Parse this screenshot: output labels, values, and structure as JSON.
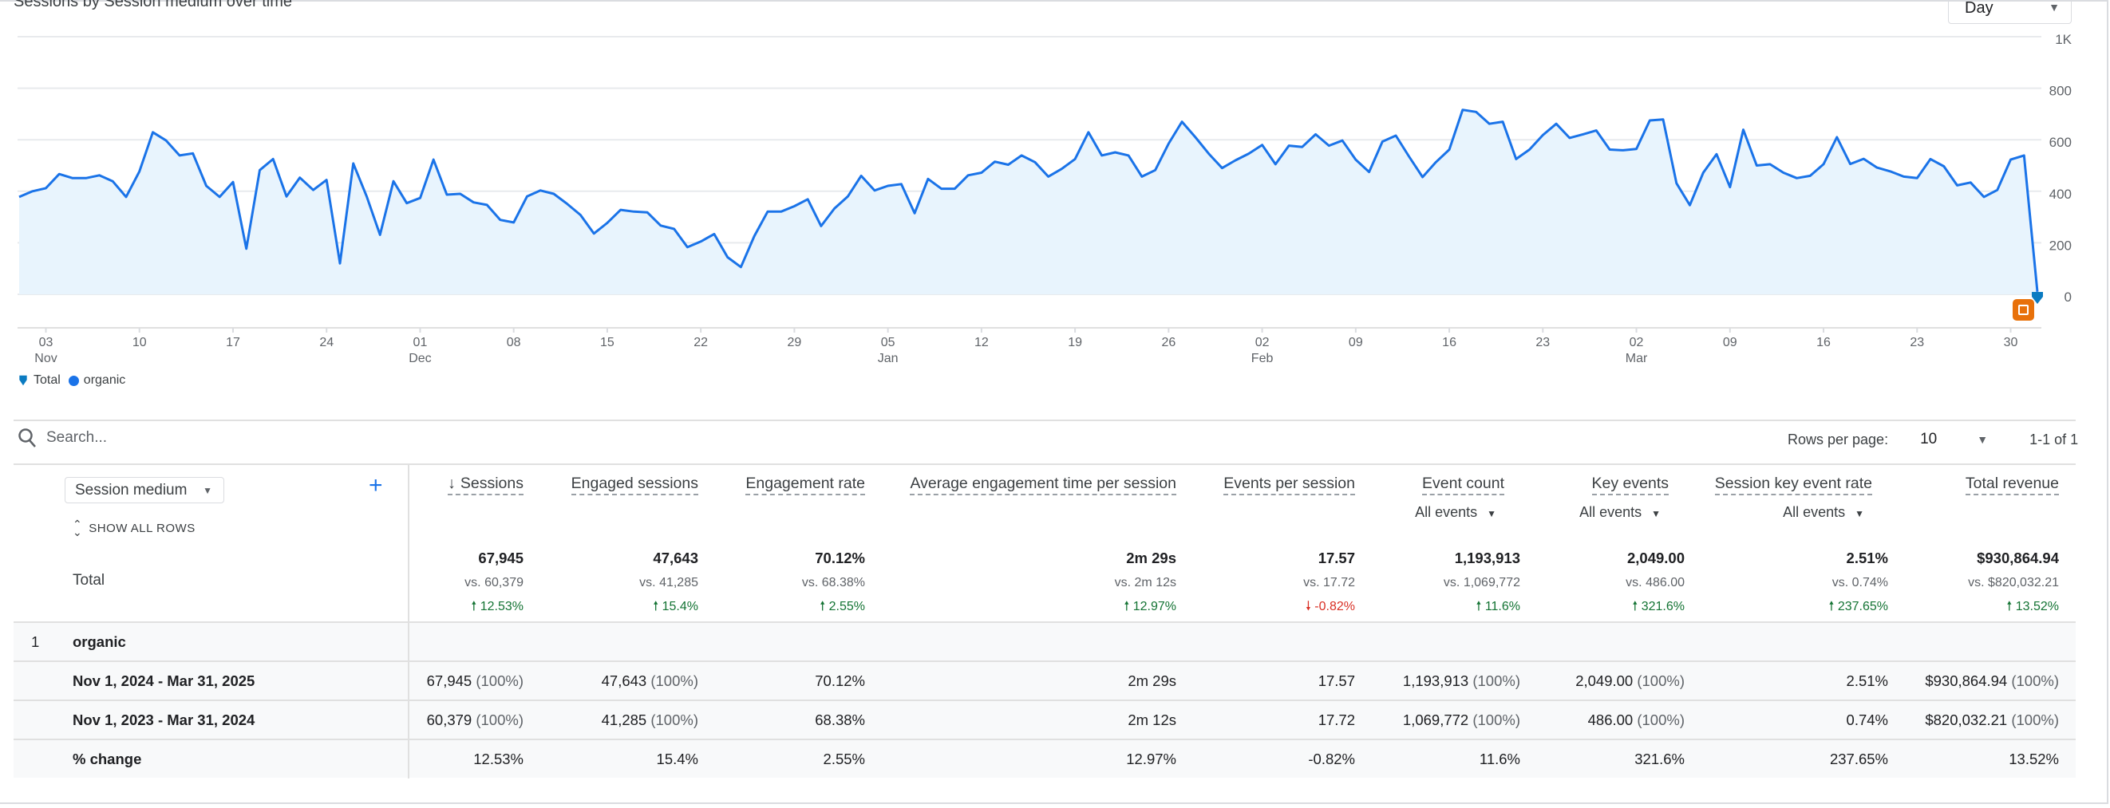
{
  "card": {
    "title": "Sessions by Session medium over time",
    "granularity": "Day"
  },
  "colors": {
    "line": "#1a73e8",
    "fill": "#e8f4fd",
    "positive": "#137333",
    "negative": "#d93025",
    "annotation": "#e8710a",
    "total_marker": "#0b7bc1"
  },
  "legend": [
    {
      "label": "Total",
      "icon": "pin-icon"
    },
    {
      "label": "organic",
      "icon": "dot-icon"
    }
  ],
  "chart_data": {
    "type": "area",
    "title": "Sessions by Session medium over time",
    "ylim": [
      0,
      1000
    ],
    "y_ticks": [
      "0",
      "200",
      "400",
      "600",
      "800",
      "1K"
    ],
    "y_tick_values": [
      0,
      200,
      400,
      600,
      800,
      1000
    ],
    "grid": true,
    "legend_position": "bottom-left",
    "x_ticks": [
      {
        "date": "2024-11-03",
        "day": "03",
        "month": "Nov"
      },
      {
        "date": "2024-11-10",
        "day": "10"
      },
      {
        "date": "2024-11-17",
        "day": "17"
      },
      {
        "date": "2024-11-24",
        "day": "24"
      },
      {
        "date": "2024-12-01",
        "day": "01",
        "month": "Dec"
      },
      {
        "date": "2024-12-08",
        "day": "08"
      },
      {
        "date": "2024-12-15",
        "day": "15"
      },
      {
        "date": "2024-12-22",
        "day": "22"
      },
      {
        "date": "2024-12-29",
        "day": "29"
      },
      {
        "date": "2025-01-05",
        "day": "05",
        "month": "Jan"
      },
      {
        "date": "2025-01-12",
        "day": "12"
      },
      {
        "date": "2025-01-19",
        "day": "19"
      },
      {
        "date": "2025-01-26",
        "day": "26"
      },
      {
        "date": "2025-02-02",
        "day": "02",
        "month": "Feb"
      },
      {
        "date": "2025-02-09",
        "day": "09"
      },
      {
        "date": "2025-02-16",
        "day": "16"
      },
      {
        "date": "2025-02-23",
        "day": "23"
      },
      {
        "date": "2025-03-02",
        "day": "02",
        "month": "Mar"
      },
      {
        "date": "2025-03-09",
        "day": "09"
      },
      {
        "date": "2025-03-16",
        "day": "16"
      },
      {
        "date": "2025-03-23",
        "day": "23"
      },
      {
        "date": "2025-03-30",
        "day": "30"
      }
    ],
    "series": [
      {
        "name": "organic",
        "x": [
          "2024-11-01",
          "2024-11-02",
          "2024-11-03",
          "2024-11-04",
          "2024-11-05",
          "2024-11-06",
          "2024-11-07",
          "2024-11-08",
          "2024-11-09",
          "2024-11-10",
          "2024-11-11",
          "2024-11-12",
          "2024-11-13",
          "2024-11-14",
          "2024-11-15",
          "2024-11-16",
          "2024-11-17",
          "2024-11-18",
          "2024-11-19",
          "2024-11-20",
          "2024-11-21",
          "2024-11-22",
          "2024-11-23",
          "2024-11-24",
          "2024-11-25",
          "2024-11-26",
          "2024-11-27",
          "2024-11-28",
          "2024-11-29",
          "2024-11-30",
          "2024-12-01",
          "2024-12-02",
          "2024-12-03",
          "2024-12-04",
          "2024-12-05",
          "2024-12-06",
          "2024-12-07",
          "2024-12-08",
          "2024-12-09",
          "2024-12-10",
          "2024-12-11",
          "2024-12-12",
          "2024-12-13",
          "2024-12-14",
          "2024-12-15",
          "2024-12-16",
          "2024-12-17",
          "2024-12-18",
          "2024-12-19",
          "2024-12-20",
          "2024-12-21",
          "2024-12-22",
          "2024-12-23",
          "2024-12-24",
          "2024-12-25",
          "2024-12-26",
          "2024-12-27",
          "2024-12-28",
          "2024-12-29",
          "2024-12-30",
          "2024-12-31",
          "2025-01-01",
          "2025-01-02",
          "2025-01-03",
          "2025-01-04",
          "2025-01-05",
          "2025-01-06",
          "2025-01-07",
          "2025-01-08",
          "2025-01-09",
          "2025-01-10",
          "2025-01-11",
          "2025-01-12",
          "2025-01-13",
          "2025-01-14",
          "2025-01-15",
          "2025-01-16",
          "2025-01-17",
          "2025-01-18",
          "2025-01-19",
          "2025-01-20",
          "2025-01-21",
          "2025-01-22",
          "2025-01-23",
          "2025-01-24",
          "2025-01-25",
          "2025-01-26",
          "2025-01-27",
          "2025-01-28",
          "2025-01-29",
          "2025-01-30",
          "2025-01-31",
          "2025-02-01",
          "2025-02-02",
          "2025-02-03",
          "2025-02-04",
          "2025-02-05",
          "2025-02-06",
          "2025-02-07",
          "2025-02-08",
          "2025-02-09",
          "2025-02-10",
          "2025-02-11",
          "2025-02-12",
          "2025-02-13",
          "2025-02-14",
          "2025-02-15",
          "2025-02-16",
          "2025-02-17",
          "2025-02-18",
          "2025-02-19",
          "2025-02-20",
          "2025-02-21",
          "2025-02-22",
          "2025-02-23",
          "2025-02-24",
          "2025-02-25",
          "2025-02-26",
          "2025-02-27",
          "2025-02-28",
          "2025-03-01",
          "2025-03-02",
          "2025-03-03",
          "2025-03-04",
          "2025-03-05",
          "2025-03-06",
          "2025-03-07",
          "2025-03-08",
          "2025-03-09",
          "2025-03-10",
          "2025-03-11",
          "2025-03-12",
          "2025-03-13",
          "2025-03-14",
          "2025-03-15",
          "2025-03-16",
          "2025-03-17",
          "2025-03-18",
          "2025-03-19",
          "2025-03-20",
          "2025-03-21",
          "2025-03-22",
          "2025-03-23",
          "2025-03-24",
          "2025-03-25",
          "2025-03-26",
          "2025-03-27",
          "2025-03-28",
          "2025-03-29",
          "2025-03-30",
          "2025-03-31",
          "2025-04-01"
        ],
        "values": [
          378,
          400,
          412,
          467,
          451,
          451,
          462,
          439,
          378,
          477,
          629,
          597,
          539,
          547,
          421,
          378,
          436,
          177,
          482,
          525,
          380,
          453,
          405,
          444,
          120,
          508,
          380,
          231,
          439,
          354,
          374,
          523,
          387,
          390,
          357,
          347,
          289,
          279,
          380,
          403,
          390,
          351,
          308,
          236,
          277,
          328,
          321,
          318,
          267,
          254,
          183,
          205,
          234,
          144,
          106,
          226,
          321,
          321,
          342,
          369,
          265,
          333,
          380,
          460,
          403,
          421,
          428,
          315,
          448,
          410,
          410,
          462,
          472,
          515,
          503,
          539,
          513,
          457,
          487,
          525,
          629,
          539,
          551,
          539,
          457,
          482,
          585,
          670,
          610,
          546,
          490,
          520,
          546,
          580,
          505,
          577,
          572,
          621,
          577,
          597,
          523,
          475,
          593,
          616,
          534,
          455,
          513,
          562,
          716,
          708,
          662,
          670,
          525,
          562,
          618,
          662,
          607,
          621,
          636,
          562,
          559,
          564,
          675,
          679,
          431,
          346,
          472,
          544,
          416,
          639,
          500,
          505,
          472,
          451,
          460,
          505,
          610,
          506,
          526,
          492,
          477,
          457,
          451,
          525,
          497,
          423,
          434,
          378,
          405,
          523,
          539,
          10
        ]
      }
    ]
  },
  "toolbar": {
    "search_placeholder": "Search...",
    "rows_per_page_label": "Rows per page:",
    "rows_per_page": "10",
    "range": "1-1 of 1"
  },
  "table": {
    "dimension": "Session medium",
    "show_all_rows": "SHOW ALL ROWS",
    "total_label": "Total",
    "columns": [
      {
        "label": "Sessions",
        "sorted": "desc",
        "total": "67,945",
        "vs": "vs. 60,379",
        "change": "12.53%",
        "dir": "up"
      },
      {
        "label": "Engaged sessions",
        "total": "47,643",
        "vs": "vs. 41,285",
        "change": "15.4%",
        "dir": "up"
      },
      {
        "label": "Engagement rate",
        "total": "70.12%",
        "vs": "vs. 68.38%",
        "change": "2.55%",
        "dir": "up"
      },
      {
        "label": "Average engagement time per session",
        "total": "2m 29s",
        "vs": "vs. 2m 12s",
        "change": "12.97%",
        "dir": "up"
      },
      {
        "label": "Events per session",
        "total": "17.57",
        "vs": "vs. 17.72",
        "change": "-0.82%",
        "dir": "down"
      },
      {
        "label": "Event count",
        "filter": "All events",
        "total": "1,193,913",
        "vs": "vs. 1,069,772",
        "change": "11.6%",
        "dir": "up"
      },
      {
        "label": "Key events",
        "filter": "All events",
        "total": "2,049.00",
        "vs": "vs. 486.00",
        "change": "321.6%",
        "dir": "up"
      },
      {
        "label": "Session key event rate",
        "filter": "All events",
        "total": "2.51%",
        "vs": "vs. 0.74%",
        "change": "237.65%",
        "dir": "up"
      },
      {
        "label": "Total revenue",
        "total": "$930,864.94",
        "vs": "vs. $820,032.21",
        "change": "13.52%",
        "dir": "up"
      }
    ],
    "group": {
      "index": "1",
      "label": "organic"
    },
    "rows": [
      {
        "label": "Nov 1, 2024 - Mar 31, 2025",
        "cells": [
          [
            "67,945",
            "(100%)"
          ],
          [
            "47,643",
            "(100%)"
          ],
          [
            "70.12%",
            ""
          ],
          [
            "2m 29s",
            ""
          ],
          [
            "17.57",
            ""
          ],
          [
            "1,193,913",
            "(100%)"
          ],
          [
            "2,049.00",
            "(100%)"
          ],
          [
            "2.51%",
            ""
          ],
          [
            "$930,864.94",
            "(100%)"
          ]
        ]
      },
      {
        "label": "Nov 1, 2023 - Mar 31, 2024",
        "cells": [
          [
            "60,379",
            "(100%)"
          ],
          [
            "41,285",
            "(100%)"
          ],
          [
            "68.38%",
            ""
          ],
          [
            "2m 12s",
            ""
          ],
          [
            "17.72",
            ""
          ],
          [
            "1,069,772",
            "(100%)"
          ],
          [
            "486.00",
            "(100%)"
          ],
          [
            "0.74%",
            ""
          ],
          [
            "$820,032.21",
            "(100%)"
          ]
        ]
      },
      {
        "label": "% change",
        "cells": [
          [
            "12.53%",
            ""
          ],
          [
            "15.4%",
            ""
          ],
          [
            "2.55%",
            ""
          ],
          [
            "12.97%",
            ""
          ],
          [
            "-0.82%",
            ""
          ],
          [
            "11.6%",
            ""
          ],
          [
            "321.6%",
            ""
          ],
          [
            "237.65%",
            ""
          ],
          [
            "13.52%",
            ""
          ]
        ]
      }
    ]
  }
}
